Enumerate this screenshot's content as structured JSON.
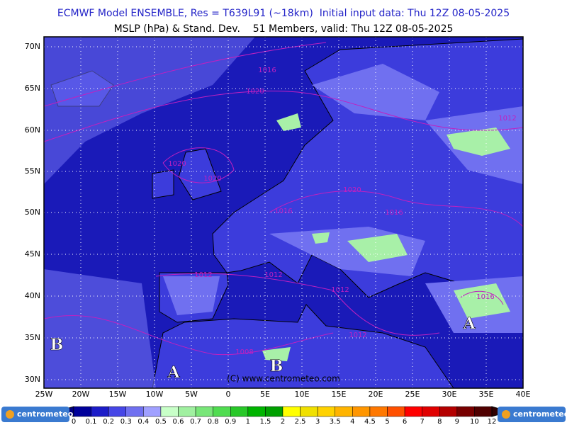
{
  "header": {
    "title": "ECMWF Model ENSEMBLE, Res = T639L91 (~18km)  Initial input data: Thu 12Z 08-05-2025",
    "subtitle": "MSLP (hPa) & Stand. Dev.    51 Members, valid: Thu 12Z 08-05-2025"
  },
  "map": {
    "lat_labels": [
      "70N",
      "65N",
      "60N",
      "55N",
      "50N",
      "45N",
      "40N",
      "35N",
      "30N"
    ],
    "lon_labels": [
      "25W",
      "20W",
      "15W",
      "10W",
      "5W",
      "0",
      "5E",
      "10E",
      "15E",
      "20E",
      "25E",
      "30E",
      "35E",
      "40E"
    ],
    "isobar_labels": [
      "1016",
      "1020",
      "1020",
      "1020",
      "1020",
      "1016",
      "1016",
      "1012",
      "1012",
      "1012",
      "1012",
      "1008",
      "1012",
      "1016"
    ],
    "pressure_centers": [
      "B",
      "A",
      "B",
      "A"
    ],
    "copyright": "(C) www.centrometeo.com"
  },
  "colorbar": {
    "labels": [
      "0",
      "0.1",
      "0.2",
      "0.3",
      "0.4",
      "0.5",
      "0.6",
      "0.7",
      "0.8",
      "0.9",
      "1",
      "1.5",
      "2",
      "2.5",
      "3",
      "3.5",
      "4",
      "4.5",
      "5",
      "6",
      "7",
      "8",
      "9",
      "10",
      "12"
    ]
  },
  "logos": [
    "centrometeo",
    "centrometeo"
  ]
}
